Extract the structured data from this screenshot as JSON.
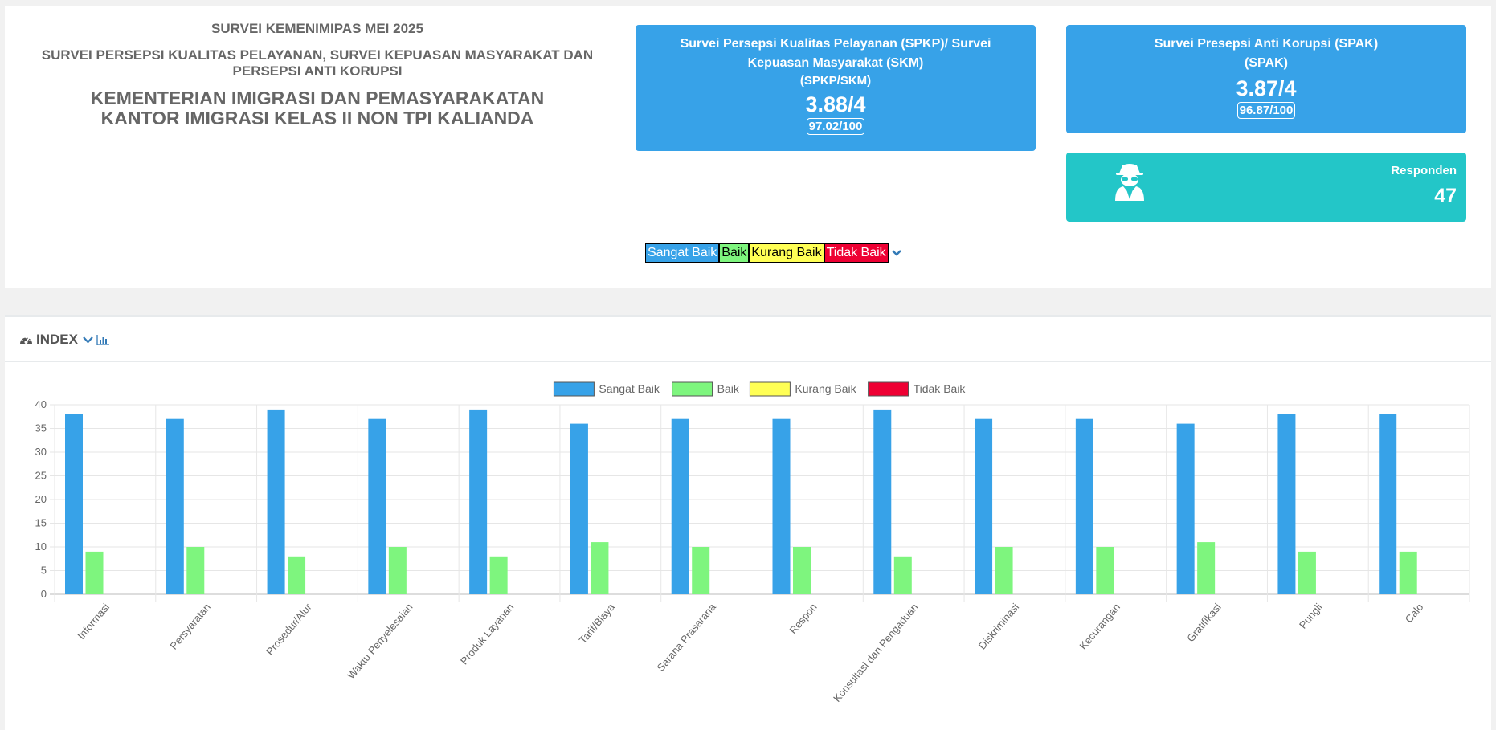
{
  "header": {
    "line1": "SURVEI KEMENIMIPAS MEI 2025",
    "line2": "SURVEI PERSEPSI KUALITAS PELAYANAN, SURVEI KEPUASAN MASYARAKAT DAN PERSEPSI ANTI KORUPSI",
    "line3a": "KEMENTERIAN IMIGRASI DAN PEMASYARAKATAN",
    "line3b": "KANTOR IMIGRASI KELAS II NON TPI KALIANDA"
  },
  "spkp_card": {
    "title_a": "Survei Persepsi Kualitas Pelayanan (SPKP)/ Survei",
    "title_b": "Kepuasan Masyarakat (SKM)",
    "title_c": "(SPKP/SKM)",
    "score": "3.88/4",
    "score100": "97.02/100"
  },
  "spak_card": {
    "title_a": "Survei Presepsi Anti Korupsi (SPAK)",
    "title_b": "(SPAK)",
    "score": "3.87/4",
    "score100": "96.87/100"
  },
  "responden_card": {
    "icon": "user-secret-icon",
    "label": "Responden",
    "value": "47"
  },
  "legend_bar": {
    "sangat_baik": "Sangat Baik",
    "baik": "Baik",
    "kurang_baik": "Kurang Baik",
    "tidak_baik": "Tidak Baik"
  },
  "index_panel": {
    "title": "INDEX"
  },
  "colors": {
    "sangat_baik": "#37a2e8",
    "baik": "#7ef57e",
    "kurang_baik": "#ffff55",
    "tidak_baik": "#ee0033",
    "responden_bg": "#23c6c8"
  },
  "chart_data": {
    "type": "bar",
    "categories": [
      "Informasi",
      "Persyaratan",
      "Prosedur/Alur",
      "Waktu Penyelesaian",
      "Produk Layanan",
      "Tarif/Biaya",
      "Sarana Prasarana",
      "Respon",
      "Konsultasi dan Pengaduan",
      "Diskriminasi",
      "Kecurangan",
      "Gratifikasi",
      "Pungli",
      "Calo"
    ],
    "series": [
      {
        "name": "Sangat Baik",
        "color": "#37a2e8",
        "values": [
          38,
          37,
          39,
          37,
          39,
          36,
          37,
          37,
          39,
          37,
          37,
          36,
          38,
          38
        ]
      },
      {
        "name": "Baik",
        "color": "#7ef57e",
        "values": [
          9,
          10,
          8,
          10,
          8,
          11,
          10,
          10,
          8,
          10,
          10,
          11,
          9,
          9
        ]
      },
      {
        "name": "Kurang Baik",
        "color": "#ffff55",
        "values": [
          0,
          0,
          0,
          0,
          0,
          0,
          0,
          0,
          0,
          0,
          0,
          0,
          0,
          0
        ]
      },
      {
        "name": "Tidak Baik",
        "color": "#ee0033",
        "values": [
          0,
          0,
          0,
          0,
          0,
          0,
          0,
          0,
          0,
          0,
          0,
          0,
          0,
          0
        ]
      }
    ],
    "ylim": [
      0,
      40
    ],
    "yticks": [
      0,
      5,
      10,
      15,
      20,
      25,
      30,
      35,
      40
    ],
    "grid": true,
    "legend_position": "top"
  }
}
